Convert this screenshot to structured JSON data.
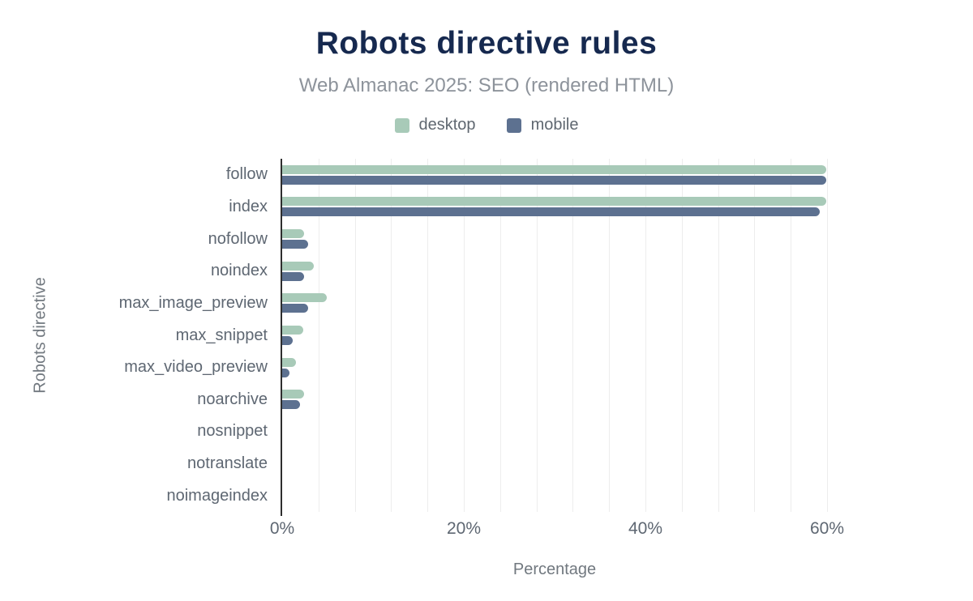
{
  "title": "Robots directive rules",
  "subtitle": "Web Almanac 2025: SEO (rendered HTML)",
  "legend": {
    "items": [
      {
        "label": "desktop",
        "color": "#a8cab8"
      },
      {
        "label": "mobile",
        "color": "#5d7190"
      }
    ]
  },
  "colors": {
    "title": "#16294f",
    "subtitle": "#8d939b",
    "desktop_bar": "#a8cab8",
    "mobile_bar": "#5d7190",
    "axis_line": "#2e2e2e",
    "gridline": "#ededed",
    "tick_text": "#5e6772"
  },
  "chart_data": {
    "type": "bar",
    "orientation": "horizontal",
    "title": "Robots directive rules",
    "subtitle": "Web Almanac 2025: SEO (rendered HTML)",
    "xlabel": "Percentage",
    "ylabel": "Robots directive",
    "categories": [
      "follow",
      "index",
      "nofollow",
      "noindex",
      "max_image_preview",
      "max_snippet",
      "max_video_preview",
      "noarchive",
      "nosnippet",
      "notranslate",
      "noimageindex"
    ],
    "series": [
      {
        "name": "desktop",
        "color": "#a8cab8",
        "values": [
          59.9,
          59.9,
          2.4,
          3.5,
          4.9,
          2.3,
          1.5,
          2.4,
          0,
          0,
          0
        ]
      },
      {
        "name": "mobile",
        "color": "#5d7190",
        "values": [
          59.9,
          59.2,
          2.9,
          2.4,
          2.9,
          1.2,
          0.8,
          2.0,
          0,
          0,
          0
        ]
      }
    ],
    "xlim": [
      0,
      64.3
    ],
    "x_ticks": [
      {
        "value": 0,
        "label": "0%"
      },
      {
        "value": 20,
        "label": "20%"
      },
      {
        "value": 40,
        "label": "40%"
      },
      {
        "value": 60,
        "label": "60%"
      }
    ],
    "grid": {
      "show": true,
      "step": 4,
      "max": 60
    },
    "legend_position": "top"
  }
}
